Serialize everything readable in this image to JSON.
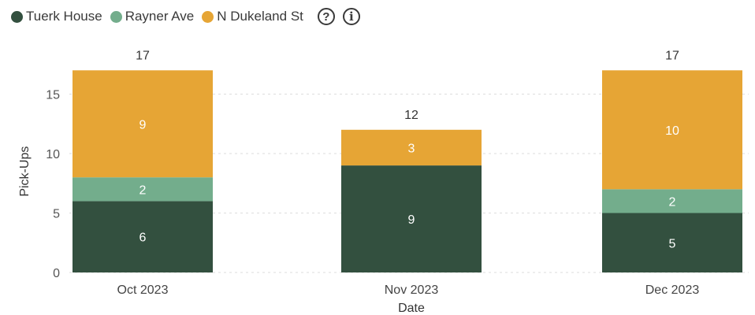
{
  "legend": {
    "series": [
      "Tuerk House",
      "Rayner Ave",
      "N Dukeland St"
    ],
    "icons": [
      "help-icon",
      "info-icon"
    ]
  },
  "chart_data": {
    "type": "bar",
    "stacked": true,
    "categories": [
      "Oct 2023",
      "Nov 2023",
      "Dec 2023"
    ],
    "series": [
      {
        "name": "Tuerk House",
        "values": [
          6,
          9,
          5
        ],
        "color": "#33503f",
        "labels": [
          "6",
          "9",
          "5"
        ]
      },
      {
        "name": "Rayner Ave",
        "values": [
          2,
          0,
          2
        ],
        "color": "#73ad8c",
        "labels": [
          "2",
          "",
          "2"
        ]
      },
      {
        "name": "N Dukeland St",
        "values": [
          9,
          3,
          10
        ],
        "color": "#e6a535",
        "labels": [
          "9",
          "3",
          "10"
        ]
      }
    ],
    "totals": [
      "17",
      "12",
      "17"
    ],
    "xlabel": "Date",
    "ylabel": "Pick-Ups",
    "yticks": [
      0,
      5,
      10,
      15
    ],
    "ytick_labels": [
      "0",
      "5",
      "10",
      "15"
    ],
    "ylim": [
      0,
      17
    ],
    "grid": true,
    "legend_position": "top-left"
  }
}
